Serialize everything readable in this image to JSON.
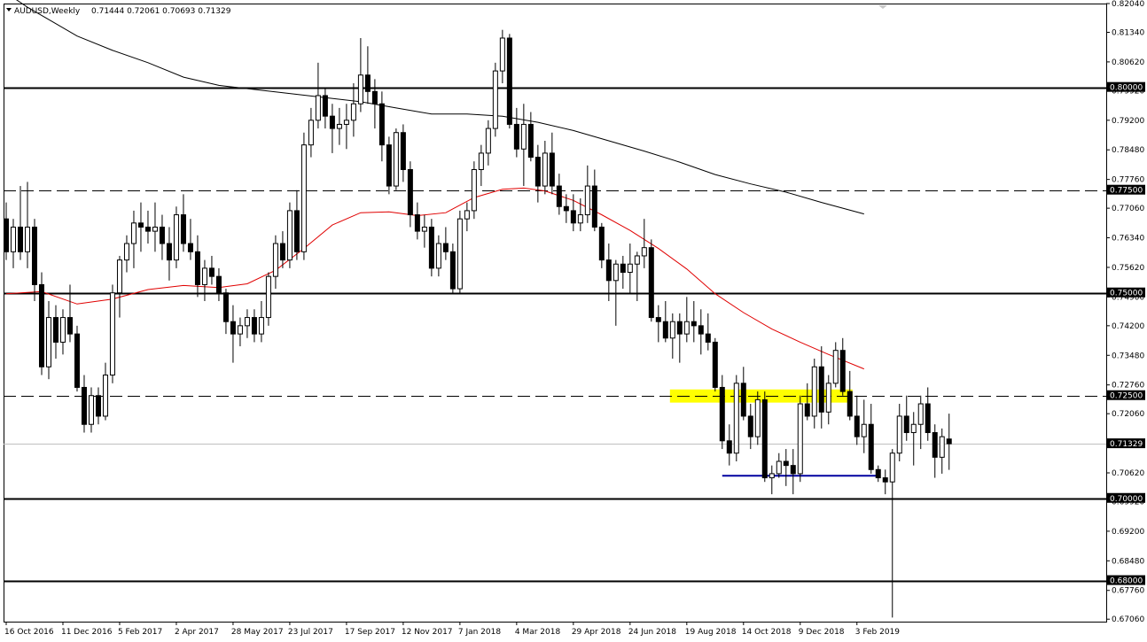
{
  "chart_data": {
    "type": "candlestick",
    "header": {
      "symbol": "AUDUSD,Weekly",
      "ohlc": "0.71444 0.72061 0.70693 0.71329"
    },
    "ylim": [
      0.67,
      0.8204
    ],
    "y_ticks": [
      "0.82040",
      "0.81340",
      "0.80620",
      "0.79920",
      "0.79200",
      "0.78480",
      "0.77760",
      "0.77060",
      "0.76340",
      "0.75620",
      "0.74900",
      "0.74200",
      "0.73480",
      "0.72760",
      "0.72060",
      "0.71340",
      "0.70620",
      "0.69920",
      "0.69200",
      "0.68480",
      "0.67760",
      "0.67060"
    ],
    "x_labels": [
      "16 Oct 2016",
      "11 Dec 2016",
      "5 Feb 2017",
      "2 Apr 2017",
      "28 May 2017",
      "23 Jul 2017",
      "17 Sep 2017",
      "12 Nov 2017",
      "7 Jan 2018",
      "4 Mar 2018",
      "29 Apr 2018",
      "24 Jun 2018",
      "19 Aug 2018",
      "14 Oct 2018",
      "9 Dec 2018",
      "3 Feb 2019"
    ],
    "x_label_bars": [
      0,
      8,
      16,
      24,
      32,
      40,
      48,
      56,
      64,
      72,
      80,
      88,
      96,
      104,
      112,
      120
    ],
    "levels": [
      {
        "value": 0.8,
        "label": "0.80000",
        "style": "solid"
      },
      {
        "value": 0.775,
        "label": "0.77500",
        "style": "dashed"
      },
      {
        "value": 0.75,
        "label": "0.75000",
        "style": "solid"
      },
      {
        "value": 0.725,
        "label": "0.72500",
        "style": "dashed"
      },
      {
        "value": 0.7,
        "label": "0.70000",
        "style": "solid"
      },
      {
        "value": 0.68,
        "label": "0.68000",
        "style": "solid"
      }
    ],
    "current_price": {
      "value": 0.71329,
      "label": "0.71329"
    },
    "zones": [
      {
        "from_bar": 94,
        "to_bar": 119,
        "low": 0.7233,
        "high": 0.7265,
        "color": "#ffff00"
      }
    ],
    "support_line": {
      "from_bar": 101,
      "to_bar": 123,
      "value": 0.7055,
      "color": "#0000a0"
    },
    "ma_slow": {
      "color": "#000000",
      "points": [
        [
          0,
          0.823
        ],
        [
          3,
          0.8195
        ],
        [
          6,
          0.8165
        ],
        [
          10,
          0.8125
        ],
        [
          15,
          0.809
        ],
        [
          20,
          0.806
        ],
        [
          25,
          0.8025
        ],
        [
          30,
          0.8005
        ],
        [
          35,
          0.7995
        ],
        [
          40,
          0.7985
        ],
        [
          45,
          0.7975
        ],
        [
          50,
          0.7965
        ],
        [
          55,
          0.795
        ],
        [
          60,
          0.7935
        ],
        [
          65,
          0.7935
        ],
        [
          70,
          0.793
        ],
        [
          75,
          0.7915
        ],
        [
          80,
          0.7895
        ],
        [
          85,
          0.787
        ],
        [
          90,
          0.7845
        ],
        [
          95,
          0.7818
        ],
        [
          100,
          0.7788
        ],
        [
          105,
          0.7765
        ],
        [
          110,
          0.7745
        ],
        [
          115,
          0.772
        ],
        [
          121,
          0.7692
        ]
      ]
    },
    "ma_fast": {
      "color": "#e00000",
      "points": [
        [
          0,
          0.7498
        ],
        [
          5,
          0.7503
        ],
        [
          10,
          0.7473
        ],
        [
          15,
          0.7485
        ],
        [
          20,
          0.7508
        ],
        [
          25,
          0.7518
        ],
        [
          30,
          0.7513
        ],
        [
          34,
          0.7522
        ],
        [
          38,
          0.7555
        ],
        [
          42,
          0.7608
        ],
        [
          46,
          0.7665
        ],
        [
          50,
          0.7695
        ],
        [
          54,
          0.7697
        ],
        [
          58,
          0.7688
        ],
        [
          62,
          0.7695
        ],
        [
          66,
          0.7732
        ],
        [
          70,
          0.7752
        ],
        [
          73,
          0.7755
        ],
        [
          76,
          0.7748
        ],
        [
          80,
          0.7725
        ],
        [
          84,
          0.769
        ],
        [
          88,
          0.7652
        ],
        [
          92,
          0.7608
        ],
        [
          96,
          0.7558
        ],
        [
          100,
          0.7498
        ],
        [
          104,
          0.7452
        ],
        [
          108,
          0.7412
        ],
        [
          112,
          0.738
        ],
        [
          116,
          0.735
        ],
        [
          121,
          0.7315
        ]
      ]
    },
    "candles": [
      [
        0.768,
        0.772,
        0.758,
        0.76
      ],
      [
        0.76,
        0.768,
        0.756,
        0.766
      ],
      [
        0.766,
        0.776,
        0.758,
        0.76
      ],
      [
        0.76,
        0.777,
        0.756,
        0.766
      ],
      [
        0.766,
        0.768,
        0.748,
        0.752
      ],
      [
        0.752,
        0.755,
        0.73,
        0.732
      ],
      [
        0.732,
        0.748,
        0.729,
        0.744
      ],
      [
        0.744,
        0.747,
        0.734,
        0.738
      ],
      [
        0.738,
        0.746,
        0.735,
        0.744
      ],
      [
        0.744,
        0.752,
        0.738,
        0.74
      ],
      [
        0.74,
        0.742,
        0.726,
        0.727
      ],
      [
        0.727,
        0.73,
        0.716,
        0.718
      ],
      [
        0.718,
        0.727,
        0.716,
        0.725
      ],
      [
        0.725,
        0.727,
        0.718,
        0.72
      ],
      [
        0.72,
        0.733,
        0.719,
        0.73
      ],
      [
        0.73,
        0.752,
        0.728,
        0.75
      ],
      [
        0.75,
        0.759,
        0.744,
        0.758
      ],
      [
        0.758,
        0.764,
        0.755,
        0.762
      ],
      [
        0.762,
        0.77,
        0.756,
        0.767
      ],
      [
        0.767,
        0.772,
        0.76,
        0.766
      ],
      [
        0.766,
        0.77,
        0.762,
        0.765
      ],
      [
        0.765,
        0.772,
        0.76,
        0.766
      ],
      [
        0.766,
        0.769,
        0.758,
        0.762
      ],
      [
        0.762,
        0.766,
        0.753,
        0.758
      ],
      [
        0.758,
        0.771,
        0.756,
        0.769
      ],
      [
        0.769,
        0.774,
        0.76,
        0.762
      ],
      [
        0.762,
        0.768,
        0.758,
        0.76
      ],
      [
        0.76,
        0.764,
        0.749,
        0.752
      ],
      [
        0.752,
        0.758,
        0.748,
        0.756
      ],
      [
        0.756,
        0.759,
        0.752,
        0.754
      ],
      [
        0.754,
        0.756,
        0.748,
        0.75
      ],
      [
        0.75,
        0.751,
        0.74,
        0.743
      ],
      [
        0.743,
        0.747,
        0.733,
        0.74
      ],
      [
        0.74,
        0.744,
        0.737,
        0.742
      ],
      [
        0.742,
        0.746,
        0.739,
        0.744
      ],
      [
        0.744,
        0.746,
        0.738,
        0.74
      ],
      [
        0.74,
        0.748,
        0.738,
        0.744
      ],
      [
        0.744,
        0.755,
        0.742,
        0.754
      ],
      [
        0.754,
        0.764,
        0.751,
        0.762
      ],
      [
        0.762,
        0.765,
        0.756,
        0.758
      ],
      [
        0.758,
        0.772,
        0.756,
        0.77
      ],
      [
        0.77,
        0.775,
        0.758,
        0.76
      ],
      [
        0.76,
        0.789,
        0.758,
        0.786
      ],
      [
        0.786,
        0.795,
        0.783,
        0.792
      ],
      [
        0.792,
        0.806,
        0.79,
        0.798
      ],
      [
        0.798,
        0.8,
        0.79,
        0.793
      ],
      [
        0.793,
        0.796,
        0.784,
        0.79
      ],
      [
        0.79,
        0.795,
        0.786,
        0.791
      ],
      [
        0.791,
        0.796,
        0.785,
        0.792
      ],
      [
        0.792,
        0.801,
        0.788,
        0.796
      ],
      [
        0.796,
        0.812,
        0.794,
        0.803
      ],
      [
        0.803,
        0.81,
        0.796,
        0.799
      ],
      [
        0.799,
        0.802,
        0.79,
        0.796
      ],
      [
        0.796,
        0.799,
        0.782,
        0.786
      ],
      [
        0.786,
        0.788,
        0.774,
        0.776
      ],
      [
        0.776,
        0.79,
        0.775,
        0.789
      ],
      [
        0.789,
        0.791,
        0.777,
        0.78
      ],
      [
        0.78,
        0.782,
        0.766,
        0.769
      ],
      [
        0.769,
        0.772,
        0.763,
        0.765
      ],
      [
        0.765,
        0.769,
        0.761,
        0.766
      ],
      [
        0.766,
        0.768,
        0.754,
        0.756
      ],
      [
        0.756,
        0.764,
        0.754,
        0.762
      ],
      [
        0.762,
        0.766,
        0.758,
        0.76
      ],
      [
        0.76,
        0.762,
        0.75,
        0.751
      ],
      [
        0.751,
        0.77,
        0.75,
        0.768
      ],
      [
        0.768,
        0.772,
        0.765,
        0.77
      ],
      [
        0.77,
        0.782,
        0.768,
        0.78
      ],
      [
        0.78,
        0.786,
        0.776,
        0.784
      ],
      [
        0.784,
        0.792,
        0.781,
        0.79
      ],
      [
        0.79,
        0.806,
        0.788,
        0.804
      ],
      [
        0.804,
        0.814,
        0.801,
        0.812
      ],
      [
        0.812,
        0.813,
        0.79,
        0.791
      ],
      [
        0.791,
        0.795,
        0.783,
        0.785
      ],
      [
        0.785,
        0.796,
        0.776,
        0.791
      ],
      [
        0.791,
        0.794,
        0.782,
        0.783
      ],
      [
        0.783,
        0.786,
        0.772,
        0.776
      ],
      [
        0.776,
        0.787,
        0.774,
        0.784
      ],
      [
        0.784,
        0.789,
        0.774,
        0.776
      ],
      [
        0.776,
        0.779,
        0.769,
        0.771
      ],
      [
        0.771,
        0.774,
        0.767,
        0.77
      ],
      [
        0.77,
        0.774,
        0.765,
        0.767
      ],
      [
        0.767,
        0.773,
        0.765,
        0.769
      ],
      [
        0.769,
        0.781,
        0.767,
        0.776
      ],
      [
        0.776,
        0.78,
        0.765,
        0.766
      ],
      [
        0.766,
        0.767,
        0.756,
        0.758
      ],
      [
        0.758,
        0.762,
        0.748,
        0.753
      ],
      [
        0.753,
        0.758,
        0.742,
        0.757
      ],
      [
        0.757,
        0.759,
        0.751,
        0.755
      ],
      [
        0.755,
        0.762,
        0.75,
        0.757
      ],
      [
        0.757,
        0.76,
        0.748,
        0.759
      ],
      [
        0.759,
        0.768,
        0.756,
        0.761
      ],
      [
        0.761,
        0.763,
        0.743,
        0.744
      ],
      [
        0.744,
        0.747,
        0.738,
        0.743
      ],
      [
        0.743,
        0.748,
        0.738,
        0.739
      ],
      [
        0.739,
        0.745,
        0.734,
        0.743
      ],
      [
        0.743,
        0.745,
        0.733,
        0.74
      ],
      [
        0.74,
        0.749,
        0.738,
        0.743
      ],
      [
        0.743,
        0.748,
        0.738,
        0.742
      ],
      [
        0.742,
        0.746,
        0.735,
        0.74
      ],
      [
        0.74,
        0.745,
        0.736,
        0.738
      ],
      [
        0.738,
        0.739,
        0.726,
        0.727
      ],
      [
        0.727,
        0.73,
        0.712,
        0.714
      ],
      [
        0.714,
        0.718,
        0.708,
        0.711
      ],
      [
        0.711,
        0.73,
        0.709,
        0.728
      ],
      [
        0.728,
        0.732,
        0.719,
        0.72
      ],
      [
        0.72,
        0.723,
        0.712,
        0.715
      ],
      [
        0.715,
        0.726,
        0.713,
        0.724
      ],
      [
        0.724,
        0.726,
        0.704,
        0.705
      ],
      [
        0.705,
        0.708,
        0.701,
        0.706
      ],
      [
        0.706,
        0.711,
        0.705,
        0.709
      ],
      [
        0.709,
        0.712,
        0.703,
        0.708
      ],
      [
        0.708,
        0.712,
        0.701,
        0.706
      ],
      [
        0.706,
        0.725,
        0.704,
        0.723
      ],
      [
        0.723,
        0.728,
        0.719,
        0.72
      ],
      [
        0.72,
        0.734,
        0.717,
        0.732
      ],
      [
        0.732,
        0.737,
        0.717,
        0.721
      ],
      [
        0.721,
        0.73,
        0.718,
        0.728
      ],
      [
        0.728,
        0.738,
        0.727,
        0.736
      ],
      [
        0.736,
        0.739,
        0.725,
        0.726
      ],
      [
        0.726,
        0.731,
        0.719,
        0.72
      ]
    ],
    "candles_tail": [
      [
        0.72,
        0.725,
        0.713,
        0.715
      ],
      [
        0.715,
        0.724,
        0.711,
        0.718
      ],
      [
        0.718,
        0.723,
        0.706,
        0.707
      ],
      [
        0.707,
        0.708,
        0.704,
        0.705
      ],
      [
        0.705,
        0.707,
        0.701,
        0.704
      ],
      [
        0.704,
        0.712,
        0.671,
        0.711
      ],
      [
        0.711,
        0.723,
        0.709,
        0.72
      ],
      [
        0.72,
        0.725,
        0.714,
        0.716
      ],
      [
        0.716,
        0.721,
        0.708,
        0.718
      ],
      [
        0.718,
        0.725,
        0.712,
        0.723
      ],
      [
        0.723,
        0.727,
        0.714,
        0.716
      ],
      [
        0.716,
        0.718,
        0.705,
        0.71
      ],
      [
        0.71,
        0.717,
        0.706,
        0.715
      ],
      [
        0.71444,
        0.72061,
        0.70693,
        0.71329
      ]
    ]
  }
}
